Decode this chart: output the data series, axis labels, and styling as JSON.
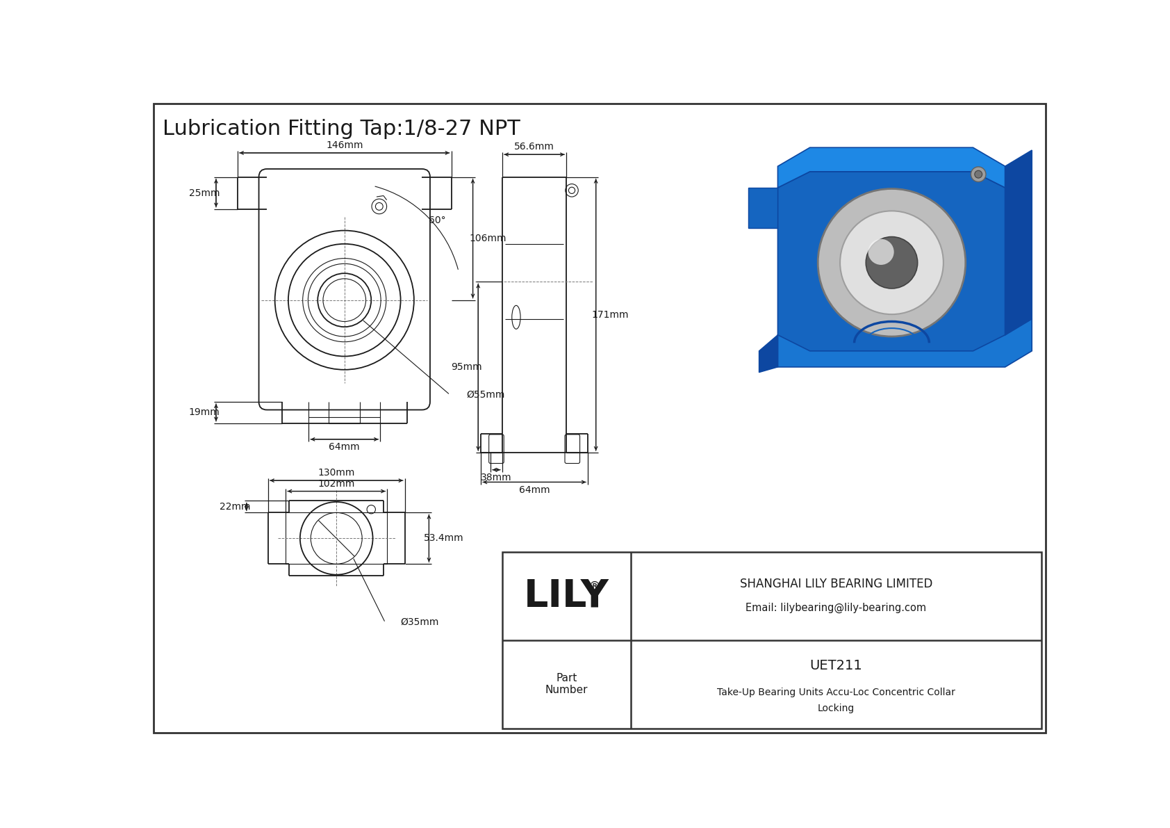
{
  "title": "Lubrication Fitting Tap:1/8-27 NPT",
  "background_color": "#ffffff",
  "line_color": "#1a1a1a",
  "border_color": "#333333",
  "company_name": "SHANGHAI LILY BEARING LIMITED",
  "company_email": "Email: lilybearing@lily-bearing.com",
  "part_number_label": "Part\nNumber",
  "part_number": "UET211",
  "part_desc1": "Take-Up Bearing Units Accu-Loc Concentric Collar",
  "part_desc2": "Locking",
  "logo_text": "LILY",
  "logo_sup": "®",
  "dims": {
    "width_top": "146mm",
    "angle": "60°",
    "left_height": "25mm",
    "bore_dia": "Ø55mm",
    "slot_width": "64mm",
    "side_height": "106mm",
    "bottom_left": "19mm",
    "bottom_width": "130mm",
    "bottom_inner": "102mm",
    "bottom_22": "22mm",
    "bottom_height": "53.4mm",
    "bottom_bore": "Ø35mm",
    "side_top": "56.6mm",
    "side_left": "95mm",
    "side_right": "171mm",
    "side_bot1": "38mm",
    "side_bot2": "64mm"
  }
}
